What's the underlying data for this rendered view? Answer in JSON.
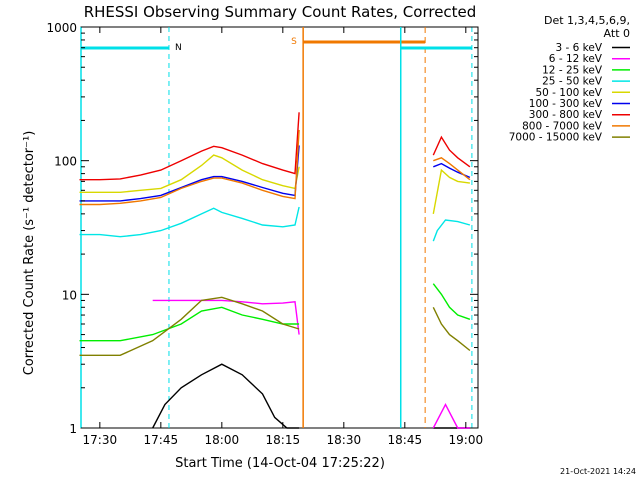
{
  "chart_data": {
    "type": "line",
    "title": "RHESSI Observing Summary Count Rates, Corrected",
    "xlabel": "Start Time (14-Oct-04 17:25:22)",
    "ylabel": "Corrected Count Rate (s⁻¹ detector⁻¹)",
    "yscale": "log",
    "ylim": [
      1,
      1000
    ],
    "xlim": [
      "17:25:22",
      "19:03:00"
    ],
    "x_ticks": [
      "17:30",
      "17:45",
      "18:00",
      "18:15",
      "18:30",
      "18:45",
      "19:00"
    ],
    "y_ticks": [
      "1",
      "10",
      "100",
      "1000"
    ],
    "legend_header": [
      "Det 1,3,4,5,6,9,",
      "Att 0"
    ],
    "legend_position": "right",
    "footer_date": "21-Oct-2021 14:24",
    "annotations": {
      "night_label": "N",
      "saa_label": "S"
    },
    "intervals": {
      "night": {
        "start": "17:25:22",
        "end": "17:47:00",
        "color": "#00e0e8"
      },
      "night2": {
        "start": "18:44:00",
        "end": "19:01:30",
        "color": "#00e0e8"
      },
      "saa": {
        "start": "18:20:00",
        "end": "18:50:00",
        "color": "#f07800"
      }
    },
    "gaps": [
      {
        "start": "18:20:00",
        "end": "18:51:30"
      }
    ],
    "series": [
      {
        "name": "3 - 6 keV",
        "color": "#000000",
        "x": [
          "17:43",
          "17:46",
          "17:50",
          "17:55",
          "18:00",
          "18:05",
          "18:10",
          "18:13",
          "18:16",
          "18:19",
          "18:52",
          "18:55",
          "18:58",
          "19:01"
        ],
        "y": [
          1.0,
          1.5,
          2.0,
          2.5,
          3.0,
          2.5,
          1.8,
          1.2,
          1.0,
          1.0,
          1.0,
          1.0,
          1.0,
          1.0
        ]
      },
      {
        "name": "6 - 12 keV",
        "color": "#ff00ff",
        "x": [
          "17:43",
          "17:46",
          "17:50",
          "17:55",
          "18:00",
          "18:05",
          "18:10",
          "18:15",
          "18:18",
          "18:19",
          "18:52",
          "18:55",
          "18:58",
          "19:01"
        ],
        "y": [
          9.0,
          9.0,
          9.0,
          9.0,
          9.0,
          8.8,
          8.5,
          8.6,
          8.8,
          5.0,
          1.0,
          1.5,
          1.0,
          1.0
        ]
      },
      {
        "name": "12 - 25 keV",
        "color": "#00ee00",
        "x": [
          "17:25",
          "17:35",
          "17:43",
          "17:50",
          "17:55",
          "18:00",
          "18:05",
          "18:10",
          "18:15",
          "18:19",
          "18:52",
          "18:54",
          "18:56",
          "18:58",
          "19:01"
        ],
        "y": [
          4.5,
          4.5,
          5.0,
          6.0,
          7.5,
          8.0,
          7.0,
          6.5,
          6.0,
          6.0,
          12.0,
          10.0,
          8.0,
          7.0,
          6.5
        ]
      },
      {
        "name": "25 - 50 keV",
        "color": "#00e6e6",
        "x": [
          "17:25",
          "17:30",
          "17:35",
          "17:40",
          "17:45",
          "17:50",
          "17:55",
          "17:58",
          "18:00",
          "18:05",
          "18:10",
          "18:15",
          "18:18",
          "18:19",
          "18:52",
          "18:53",
          "18:55",
          "18:58",
          "19:01"
        ],
        "y": [
          28,
          28,
          27,
          28,
          30,
          34,
          40,
          44,
          41,
          37,
          33,
          32,
          33,
          45,
          25,
          30,
          36,
          35,
          33
        ]
      },
      {
        "name": "50 - 100 keV",
        "color": "#d8d800",
        "x": [
          "17:25",
          "17:30",
          "17:35",
          "17:40",
          "17:45",
          "17:50",
          "17:55",
          "17:58",
          "18:00",
          "18:05",
          "18:10",
          "18:15",
          "18:18",
          "18:19",
          "18:52",
          "18:54",
          "18:56",
          "18:58",
          "19:01"
        ],
        "y": [
          58,
          58,
          58,
          60,
          62,
          72,
          92,
          110,
          105,
          85,
          72,
          65,
          62,
          90,
          40,
          85,
          75,
          70,
          68
        ]
      },
      {
        "name": "100 - 300 keV",
        "color": "#0000ee",
        "x": [
          "17:25",
          "17:30",
          "17:35",
          "17:40",
          "17:45",
          "17:50",
          "17:55",
          "17:58",
          "18:00",
          "18:05",
          "18:10",
          "18:15",
          "18:18",
          "18:19",
          "18:52",
          "18:54",
          "18:56",
          "18:58",
          "19:01"
        ],
        "y": [
          50,
          50,
          50,
          52,
          55,
          63,
          72,
          76,
          76,
          70,
          63,
          57,
          55,
          130,
          90,
          95,
          88,
          82,
          75
        ]
      },
      {
        "name": "300 - 800 keV",
        "color": "#ee0000",
        "x": [
          "17:25",
          "17:30",
          "17:35",
          "17:40",
          "17:45",
          "17:50",
          "17:55",
          "17:58",
          "18:00",
          "18:05",
          "18:10",
          "18:15",
          "18:18",
          "18:19",
          "18:52",
          "18:54",
          "18:56",
          "18:58",
          "19:01"
        ],
        "y": [
          72,
          72,
          73,
          78,
          85,
          100,
          118,
          128,
          125,
          110,
          95,
          85,
          80,
          230,
          110,
          150,
          120,
          105,
          90
        ]
      },
      {
        "name": "800 - 7000 keV",
        "color": "#f07800",
        "x": [
          "17:25",
          "17:30",
          "17:35",
          "17:40",
          "17:45",
          "17:50",
          "17:55",
          "17:58",
          "18:00",
          "18:05",
          "18:10",
          "18:15",
          "18:18",
          "18:19",
          "18:52",
          "18:54",
          "18:56",
          "18:58",
          "19:01"
        ],
        "y": [
          47,
          47,
          48,
          50,
          53,
          62,
          70,
          74,
          74,
          68,
          60,
          54,
          52,
          170,
          100,
          105,
          95,
          85,
          72
        ]
      },
      {
        "name": "7000 - 15000 keV",
        "color": "#808000",
        "x": [
          "17:25",
          "17:35",
          "17:43",
          "17:50",
          "17:55",
          "18:00",
          "18:05",
          "18:10",
          "18:15",
          "18:19",
          "18:52",
          "18:54",
          "18:56",
          "18:58",
          "19:01"
        ],
        "y": [
          3.5,
          3.5,
          4.5,
          6.5,
          9.0,
          9.5,
          8.5,
          7.5,
          6.0,
          5.5,
          8.0,
          6.0,
          5.0,
          4.5,
          3.8
        ]
      }
    ]
  }
}
